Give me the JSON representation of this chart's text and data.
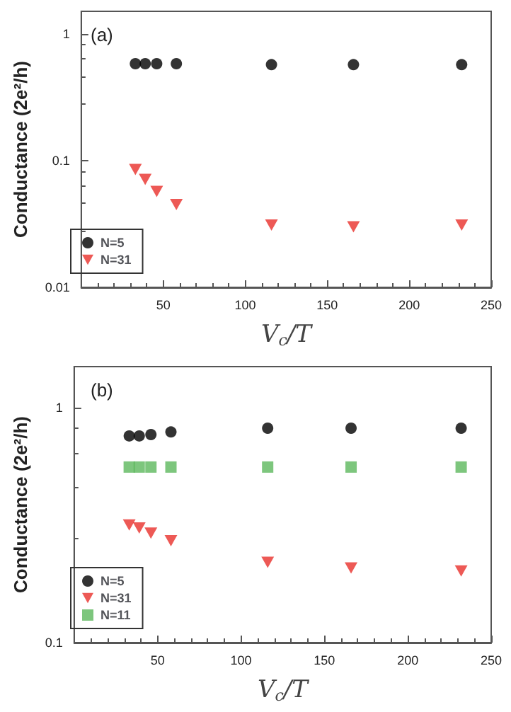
{
  "chart_data": [
    {
      "type": "scatter",
      "annotations": [
        "(a)"
      ],
      "xlabel": "V$_{c}$/T",
      "ylabel": "Conductance (2e²/h)",
      "log": "y",
      "grid": false,
      "legend": "bottom left",
      "x": [
        33,
        39,
        46,
        58,
        116,
        166,
        232
      ],
      "xlim": [
        0,
        250
      ],
      "xticks": [
        50,
        100,
        150,
        200,
        250
      ],
      "ylim": [
        0.01,
        1.5
      ],
      "yticks": [
        0.01,
        0.1,
        1
      ],
      "series": [
        {
          "name": "N=5",
          "color": "#000000",
          "marker": "circle",
          "values": [
            0.58,
            0.58,
            0.58,
            0.58,
            0.57,
            0.57,
            0.57
          ]
        },
        {
          "name": "N=31",
          "color": "#e8302a",
          "marker": "triangle",
          "values": [
            0.085,
            0.071,
            0.057,
            0.045,
            0.031,
            0.03,
            0.031
          ]
        }
      ]
    },
    {
      "type": "scatter",
      "annotations": [
        "(b)"
      ],
      "xlabel": "V$_{c}$/T",
      "ylabel": "Conductance (2e²/h)",
      "log": "y",
      "grid": false,
      "legend": "bottom left",
      "x": [
        33,
        39,
        46,
        58,
        116,
        166,
        232
      ],
      "xlim": [
        0,
        250
      ],
      "xticks": [
        50,
        100,
        150,
        200,
        250
      ],
      "ylim": [
        0.1,
        1.5
      ],
      "yticks": [
        0.1,
        1
      ],
      "series": [
        {
          "name": "N=5",
          "color": "#000000",
          "marker": "circle",
          "values": [
            0.76,
            0.76,
            0.77,
            0.79,
            0.82,
            0.82,
            0.82
          ]
        },
        {
          "name": "N=31",
          "color": "#e8302a",
          "marker": "triangle",
          "values": [
            0.317,
            0.308,
            0.293,
            0.272,
            0.22,
            0.208,
            0.202
          ]
        },
        {
          "name": "N=11",
          "color": "#5cb85c",
          "marker": "square",
          "values": [
            0.56,
            0.56,
            0.56,
            0.56,
            0.56,
            0.56,
            0.56
          ]
        }
      ]
    }
  ]
}
